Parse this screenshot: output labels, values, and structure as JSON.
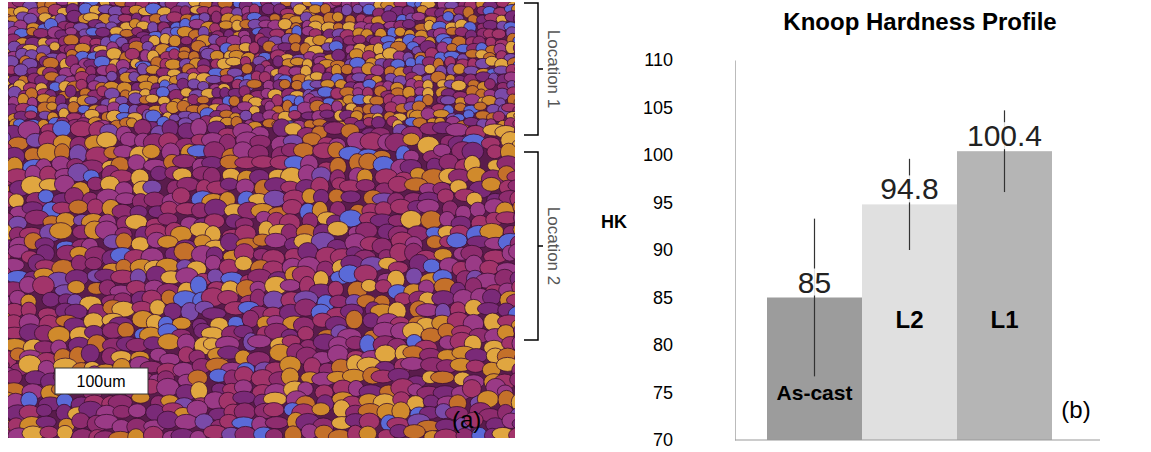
{
  "chart_data": {
    "type": "bar",
    "title": "Knoop Hardness Profile",
    "y_label": "HK",
    "categories": [
      "As-cast",
      "L2",
      "L1"
    ],
    "values": [
      85,
      94.8,
      100.4
    ],
    "errors": [
      8.3,
      4.8,
      4.3
    ],
    "colors": [
      "#9c9c9c",
      "#e0e0e0",
      "#b5b5b5"
    ],
    "ylim": [
      70,
      110
    ],
    "yticks": [
      70,
      75,
      80,
      85,
      90,
      95,
      100,
      105,
      110
    ],
    "data_labels": true,
    "tick_labels": "y",
    "panel_label": "(b)"
  },
  "micrograph": {
    "panel_label": "(a)",
    "scale_bar": "100um",
    "regions": [
      "Location 1",
      "Location 2"
    ]
  }
}
